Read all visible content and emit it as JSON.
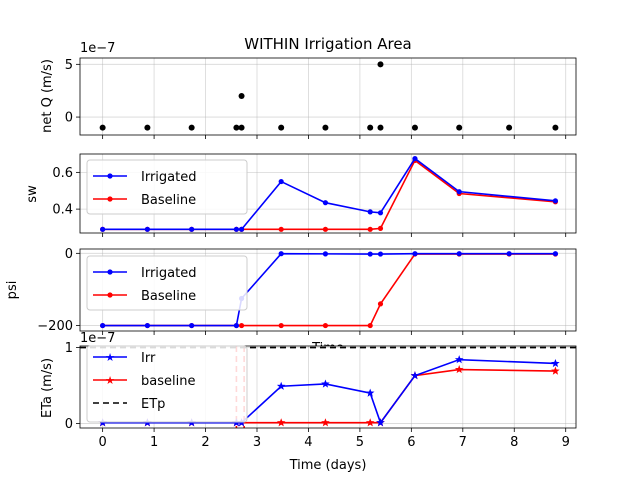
{
  "title": "WITHIN Irrigation Area",
  "colors": {
    "irrigated": "#0000ff",
    "baseline": "#ff0000",
    "etp": "#000000",
    "points": "#000000",
    "grid": "#b0b0b0"
  },
  "chart_data": [
    {
      "type": "scatter",
      "ylabel": "net Q (m/s)",
      "offset_text": "1e−7",
      "xlim": [
        -0.44,
        9.2
      ],
      "ylim": [
        -1.7,
        5.6
      ],
      "yticks": [
        0,
        5
      ],
      "ytick_labels": [
        "0",
        "5"
      ],
      "grid": true,
      "series": [
        {
          "x": [
            0,
            0.87,
            1.73,
            2.6,
            2.7,
            3.47,
            4.33,
            5.2,
            5.4,
            6.07,
            6.93,
            7.9,
            8.8
          ],
          "y": [
            -1.0,
            -1.0,
            -1.0,
            -1.0,
            -1.0,
            -1.0,
            -1.0,
            -1.0,
            -1.0,
            -1.0,
            -1.0,
            -1.0,
            -1.0
          ]
        },
        {
          "x": [
            2.7,
            5.4
          ],
          "y": [
            2.0,
            5.0
          ]
        }
      ]
    },
    {
      "type": "line",
      "ylabel": "sw",
      "xlim": [
        -0.44,
        9.2
      ],
      "ylim": [
        0.27,
        0.7
      ],
      "yticks": [
        0.4,
        0.6
      ],
      "ytick_labels": [
        "0.4",
        "0.6"
      ],
      "legend": "upper left",
      "grid": true,
      "x": [
        0,
        0.87,
        1.73,
        2.6,
        2.7,
        3.47,
        4.33,
        5.2,
        5.4,
        6.07,
        6.93,
        8.8
      ],
      "series": [
        {
          "name": "Irrigated",
          "values": [
            0.29,
            0.29,
            0.29,
            0.29,
            0.29,
            0.55,
            0.435,
            0.385,
            0.38,
            0.675,
            0.495,
            0.445
          ]
        },
        {
          "name": "Baseline",
          "values": [
            0.29,
            0.29,
            0.29,
            0.29,
            0.29,
            0.29,
            0.29,
            0.29,
            0.295,
            0.665,
            0.485,
            0.44
          ]
        }
      ]
    },
    {
      "type": "line",
      "ylabel": "psi",
      "xlabel": "Time",
      "xlim": [
        -0.44,
        9.2
      ],
      "ylim": [
        -215,
        12
      ],
      "yticks": [
        -200,
        0
      ],
      "ytick_labels": [
        "−200",
        "0"
      ],
      "legend": "upper left",
      "grid": true,
      "series": [
        {
          "name": "Irrigated",
          "x": [
            0,
            0.87,
            1.73,
            2.6,
            2.7,
            3.47,
            4.33,
            5.2,
            5.4,
            6.07,
            6.93,
            7.9,
            8.8
          ],
          "values": [
            -200,
            -200,
            -200,
            -200,
            -125,
            -1,
            -1.5,
            -2,
            -2,
            -1,
            -1,
            -1,
            -1
          ]
        },
        {
          "name": "Baseline",
          "x": [
            0,
            0.87,
            1.73,
            2.6,
            2.7,
            3.47,
            4.33,
            5.2,
            5.4,
            6.07,
            6.93,
            7.9,
            8.8
          ],
          "values": [
            -200,
            -200,
            -200,
            -200,
            -200,
            -200,
            -200,
            -200,
            -140,
            -2,
            -2,
            -2,
            -2
          ]
        }
      ]
    },
    {
      "type": "line",
      "ylabel": "ETa (m/s)",
      "xlabel": "Time (days)",
      "offset_text": "1e−7",
      "xlim": [
        -0.44,
        9.2
      ],
      "ylim": [
        -0.06,
        1.02
      ],
      "yticks": [
        0,
        1
      ],
      "ytick_labels": [
        "0",
        "1"
      ],
      "xticks": [
        0,
        1,
        2,
        3,
        4,
        5,
        6,
        7,
        8,
        9
      ],
      "xtick_labels": [
        "0",
        "1",
        "2",
        "3",
        "4",
        "5",
        "6",
        "7",
        "8",
        "9"
      ],
      "legend": "upper left",
      "grid": true,
      "series": [
        {
          "name": "Irr",
          "x": [
            0,
            0.87,
            1.73,
            2.6,
            2.7,
            3.47,
            4.33,
            5.2,
            5.4,
            6.07,
            6.93,
            8.8
          ],
          "values": [
            0.01,
            0.01,
            0.01,
            0.01,
            0.01,
            0.49,
            0.52,
            0.4,
            0.01,
            0.63,
            0.84,
            0.79
          ]
        },
        {
          "name": "baseline",
          "x": [
            0,
            0.87,
            1.73,
            2.6,
            2.7,
            3.47,
            4.33,
            5.2,
            5.4,
            6.07,
            6.93,
            8.8
          ],
          "values": [
            0.01,
            0.01,
            0.01,
            0.01,
            0.01,
            0.01,
            0.01,
            0.01,
            0.01,
            0.63,
            0.71,
            0.69
          ]
        },
        {
          "name": "ETp",
          "value": 1.0
        }
      ],
      "irrigation_markers_x": [
        2.6,
        2.75
      ]
    }
  ]
}
